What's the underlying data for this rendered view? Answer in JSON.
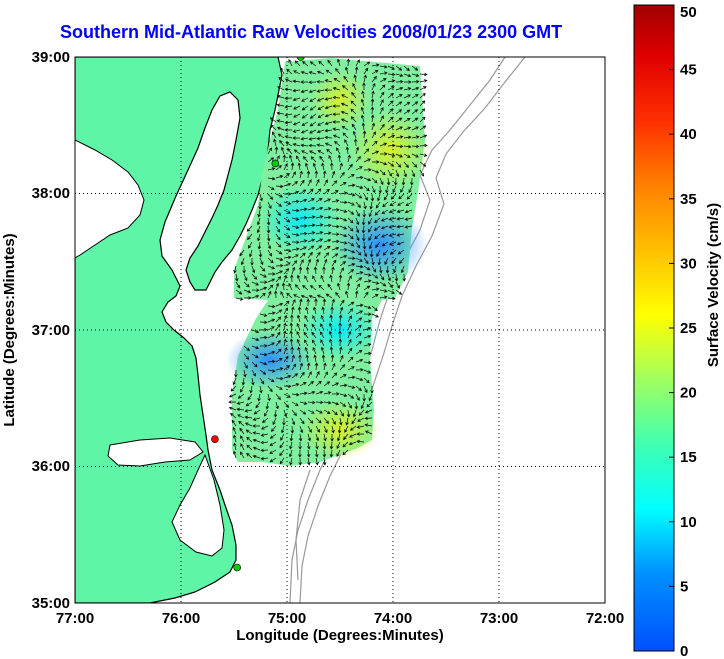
{
  "title": "Southern Mid-Atlantic Raw Velocities 2008/01/23 2300 GMT",
  "map": {
    "x_axis_label": "Longitude (Degrees:Minutes)",
    "y_axis_label": "Latitude (Degrees:Minutes)",
    "x_ticks": [
      "77:00",
      "76:00",
      "75:00",
      "74:00",
      "73:00",
      "72:00"
    ],
    "y_ticks": [
      "39:00",
      "38:00",
      "37:00",
      "36:00",
      "35:00"
    ],
    "lon_range": [
      -77,
      -72
    ],
    "lat_range": [
      35,
      39
    ],
    "grid": "dotted",
    "land_color": "#5ef5a6",
    "coast_color": "#000000",
    "bathymetry_color": "#999999"
  },
  "colorbar": {
    "label": "Surface Velocity (cm/s)",
    "min": 0,
    "max": 50,
    "ticks": [
      "0",
      "5",
      "10",
      "15",
      "20",
      "25",
      "30",
      "35",
      "40",
      "45",
      "50"
    ],
    "colormap": "jet"
  },
  "stations": [
    {
      "lon": -74.87,
      "lat": 39.0,
      "color": "#00cc00"
    },
    {
      "lon": -75.11,
      "lat": 38.22,
      "color": "#00cc00"
    },
    {
      "lon": -75.68,
      "lat": 36.2,
      "color": "#ff0000"
    },
    {
      "lon": -75.47,
      "lat": 35.26,
      "color": "#00cc00"
    }
  ]
}
